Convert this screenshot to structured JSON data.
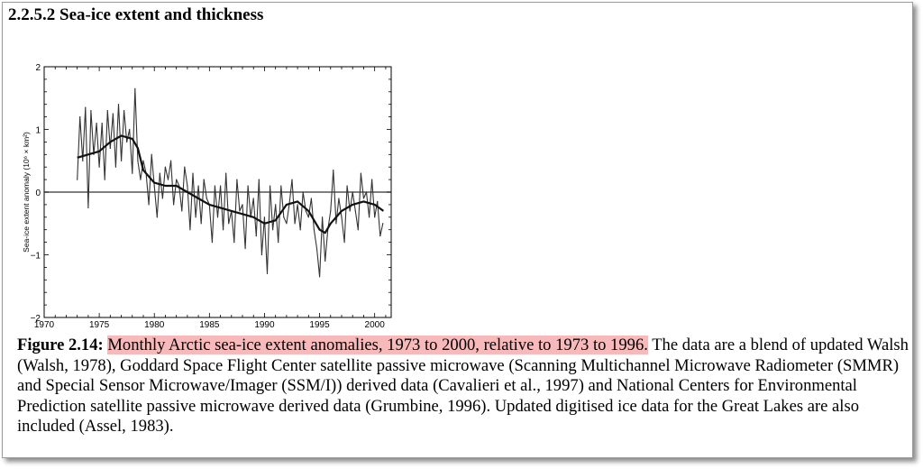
{
  "section": {
    "heading": "2.2.5.2 Sea-ice extent and thickness"
  },
  "chart_data": {
    "type": "line",
    "title": "",
    "xlabel": "",
    "ylabel": "Sea-ice extent anomaly (10⁶ × km²)",
    "xlim": [
      1970,
      2001.5
    ],
    "ylim": [
      -2,
      2
    ],
    "x_ticks": [
      1970,
      1975,
      1980,
      1985,
      1990,
      1995,
      2000
    ],
    "x_tick_labels": [
      "1970",
      "1975",
      "1980",
      "1985",
      "1990",
      "1995",
      "2000"
    ],
    "y_ticks": [
      -2,
      -1,
      0,
      1,
      2
    ],
    "y_tick_labels": [
      "−2",
      "−1",
      "0",
      "1",
      "2"
    ],
    "zero_line": true,
    "grid": false,
    "series": [
      {
        "role": "monthly",
        "x": [
          1973.0,
          1973.25,
          1973.5,
          1973.75,
          1974.0,
          1974.25,
          1974.5,
          1974.75,
          1975.0,
          1975.25,
          1975.5,
          1975.75,
          1976.0,
          1976.25,
          1976.5,
          1976.75,
          1977.0,
          1977.25,
          1977.5,
          1977.75,
          1978.0,
          1978.25,
          1978.5,
          1978.75,
          1979.0,
          1979.25,
          1979.5,
          1979.75,
          1980.0,
          1980.25,
          1980.5,
          1980.75,
          1981.0,
          1981.25,
          1981.5,
          1981.75,
          1982.0,
          1982.25,
          1982.5,
          1982.75,
          1983.0,
          1983.25,
          1983.5,
          1983.75,
          1984.0,
          1984.25,
          1984.5,
          1984.75,
          1985.0,
          1985.25,
          1985.5,
          1985.75,
          1986.0,
          1986.25,
          1986.5,
          1986.75,
          1987.0,
          1987.25,
          1987.5,
          1987.75,
          1988.0,
          1988.25,
          1988.5,
          1988.75,
          1989.0,
          1989.25,
          1989.5,
          1989.75,
          1990.0,
          1990.25,
          1990.5,
          1990.75,
          1991.0,
          1991.25,
          1991.5,
          1991.75,
          1992.0,
          1992.25,
          1992.5,
          1992.75,
          1993.0,
          1993.25,
          1993.5,
          1993.75,
          1994.0,
          1994.25,
          1994.5,
          1994.75,
          1995.0,
          1995.25,
          1995.5,
          1995.75,
          1996.0,
          1996.25,
          1996.5,
          1996.75,
          1997.0,
          1997.25,
          1997.5,
          1997.75,
          1998.0,
          1998.25,
          1998.5,
          1998.75,
          1999.0,
          1999.25,
          1999.5,
          1999.75,
          2000.0,
          2000.25,
          2000.5,
          2000.75
        ],
        "y": [
          0.2,
          1.2,
          0.5,
          1.35,
          -0.25,
          1.3,
          0.6,
          1.1,
          0.4,
          1.1,
          0.2,
          1.3,
          0.7,
          1.25,
          0.4,
          1.4,
          0.5,
          1.3,
          0.8,
          1.0,
          0.3,
          1.65,
          0.5,
          0.2,
          0.5,
          0.3,
          -0.2,
          0.6,
          0.1,
          -0.4,
          0.3,
          -0.1,
          0.4,
          0.2,
          0.5,
          -0.2,
          0.2,
          0.1,
          -0.3,
          0.4,
          0.1,
          -0.6,
          0.3,
          -0.4,
          0.1,
          -0.5,
          0.2,
          -0.1,
          -0.2,
          -0.8,
          0.1,
          -0.4,
          0.1,
          -0.6,
          0.3,
          -0.5,
          -0.3,
          -0.8,
          0.2,
          -0.3,
          -0.2,
          -0.9,
          0.1,
          -0.4,
          -0.1,
          -0.7,
          0.2,
          -1.0,
          -0.4,
          -1.3,
          0.1,
          -0.6,
          -0.2,
          -0.8,
          0.1,
          -0.4,
          -0.5,
          -0.2,
          0.2,
          -0.5,
          -0.2,
          -0.6,
          0.0,
          -0.3,
          -0.4,
          -0.1,
          -0.6,
          -0.9,
          -1.35,
          -0.4,
          -1.1,
          -0.6,
          -0.3,
          0.35,
          -0.5,
          -0.1,
          -0.4,
          -0.8,
          0.1,
          -0.3,
          0.0,
          -0.3,
          -0.6,
          0.3,
          -0.1,
          0.0,
          -0.4,
          0.2,
          -0.4,
          -0.15,
          -0.7,
          -0.5
        ]
      },
      {
        "role": "smoothed",
        "x": [
          1973.0,
          1974.0,
          1975.0,
          1976.0,
          1977.0,
          1978.0,
          1978.5,
          1979.0,
          1980.0,
          1981.0,
          1982.0,
          1983.0,
          1984.0,
          1985.0,
          1986.0,
          1987.0,
          1988.0,
          1989.0,
          1990.0,
          1991.0,
          1992.0,
          1993.0,
          1994.0,
          1995.0,
          1995.5,
          1996.0,
          1997.0,
          1998.0,
          1999.0,
          2000.0,
          2000.8
        ],
        "y": [
          0.55,
          0.6,
          0.65,
          0.8,
          0.9,
          0.85,
          0.7,
          0.35,
          0.15,
          0.1,
          0.1,
          0.0,
          -0.1,
          -0.2,
          -0.25,
          -0.3,
          -0.35,
          -0.4,
          -0.5,
          -0.45,
          -0.2,
          -0.15,
          -0.3,
          -0.6,
          -0.65,
          -0.5,
          -0.3,
          -0.2,
          -0.15,
          -0.2,
          -0.3
        ]
      }
    ]
  },
  "caption": {
    "label": "Figure 2.14:",
    "highlighted": "Monthly Arctic sea-ice extent anomalies, 1973 to 2000, relative to 1973 to 1996.",
    "body": "The data are a blend of updated Walsh (Walsh, 1978), Goddard Space Flight Center satellite passive microwave (Scanning Multichannel Microwave Radiometer (SMMR) and Special Sensor Microwave/Imager (SSM/I)) derived data (Cavalieri et al., 1997) and National Centers for Environmental Prediction satellite passive microwave derived data (Grumbine, 1996). Updated digitised ice data for the Great Lakes are also included (Assel, 1983)."
  },
  "colors": {
    "highlight": "#f7b9b9",
    "ink": "#000000",
    "series": "#333333"
  }
}
